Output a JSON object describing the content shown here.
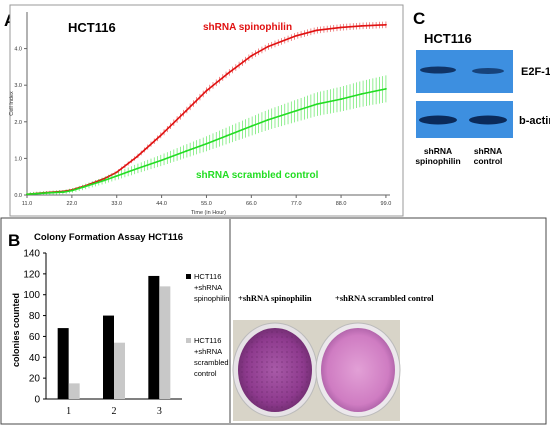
{
  "panel_a": {
    "letter": "A",
    "cell_line": "HCT116",
    "label_red": "shRNA spinophilin",
    "label_green": "shRNA scrambled control"
  },
  "panel_b": {
    "letter": "B",
    "photo_label_left": "+shRNA spinophilin",
    "photo_label_right": "+shRNA scrambled control"
  },
  "panel_c": {
    "letter": "C",
    "cell_line": "HCT116",
    "row_labels": [
      "E2F-1",
      "b-actin"
    ],
    "lane_labels": [
      [
        "shRNA",
        "spinophilin"
      ],
      [
        "shRNA",
        "control"
      ]
    ]
  },
  "colors": {
    "red_series": "#e01010",
    "green_series": "#22dd22",
    "blot_bg": "#3d8fe0",
    "band": "#0b2a5a",
    "bar_black": "#000000",
    "bar_gray": "#c8c8c8",
    "plate_purple": "#9c3f9c"
  },
  "chart_data": [
    {
      "type": "line",
      "title": "",
      "xlabel": "Time (in Hour)",
      "ylabel": "Cell Index",
      "xlim": [
        11,
        100
      ],
      "ylim": [
        0,
        5.0
      ],
      "xticks": [
        "11.0",
        "22.0",
        "33.0",
        "44.0",
        "55.0",
        "66.0",
        "77.0",
        "88.0",
        "99.0"
      ],
      "yticks": [
        "0.0",
        "1.0",
        "2.0",
        "3.0",
        "4.0"
      ],
      "grid": false,
      "series": [
        {
          "name": "shRNA spinophilin",
          "x": [
            11,
            15,
            20,
            22,
            25,
            30,
            33,
            38,
            44,
            50,
            55,
            60,
            66,
            70,
            77,
            82,
            88,
            93,
            99
          ],
          "y": [
            0.02,
            0.06,
            0.1,
            0.14,
            0.24,
            0.45,
            0.62,
            1.05,
            1.65,
            2.3,
            2.85,
            3.3,
            3.8,
            4.05,
            4.35,
            4.5,
            4.58,
            4.62,
            4.65
          ]
        },
        {
          "name": "shRNA scrambled control",
          "x": [
            11,
            15,
            20,
            22,
            25,
            30,
            33,
            38,
            44,
            50,
            55,
            60,
            66,
            70,
            77,
            82,
            88,
            93,
            99
          ],
          "y": [
            0.02,
            0.05,
            0.08,
            0.12,
            0.22,
            0.4,
            0.52,
            0.72,
            0.95,
            1.2,
            1.4,
            1.62,
            1.88,
            2.05,
            2.3,
            2.48,
            2.62,
            2.76,
            2.9
          ]
        }
      ]
    },
    {
      "type": "bar",
      "title": "Colony Formation Assay HCT116",
      "xlabel": "",
      "ylabel": "colonies counted",
      "ylim": [
        0,
        140
      ],
      "yticks": [
        "0",
        "20",
        "40",
        "60",
        "80",
        "100",
        "120",
        "140"
      ],
      "categories": [
        "1",
        "2",
        "3"
      ],
      "grid": false,
      "legend_position": "right",
      "series": [
        {
          "name": "HCT116 +shRNA spinophilin",
          "name_lines": [
            "HCT116",
            "+shRNA",
            "spinophilin"
          ],
          "values": [
            68,
            80,
            118
          ]
        },
        {
          "name": "HCT116 +shRNA scrambled control",
          "name_lines": [
            "HCT116",
            "+shRNA",
            "scrambled",
            "control"
          ],
          "values": [
            15,
            54,
            108
          ]
        }
      ]
    }
  ]
}
